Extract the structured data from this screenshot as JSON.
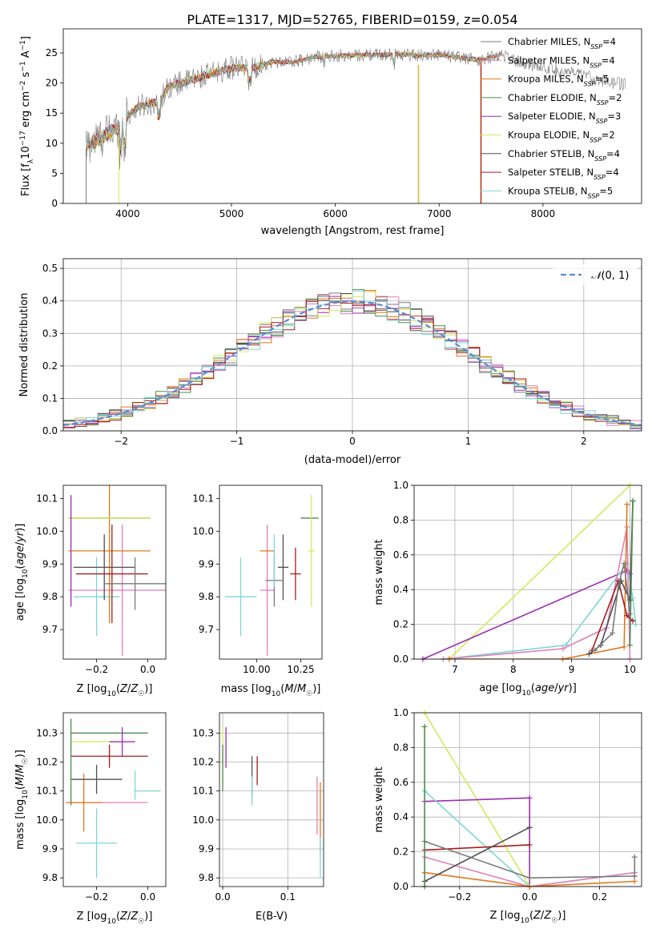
{
  "title": "PLATE=1317, MJD=52765, FIBERID=0159, z=0.054",
  "colors": [
    "#7f7f7f",
    "#e377c2",
    "#ff7f0e",
    "#2ca02c",
    "#9467bd",
    "#dbdb8d",
    "#555555",
    "#d62728",
    "#17becf"
  ],
  "colors_exact": [
    "#7a7a7a",
    "#e07fb8",
    "#e0781c",
    "#4f8a4f",
    "#9b2fb0",
    "#d4e85c",
    "#505050",
    "#a61c1c",
    "#7fd6d6"
  ],
  "chart_data": [
    {
      "type": "line",
      "id": "spectrum",
      "xlabel": "wavelength [Angstrom, rest frame]",
      "ylabel": "Flux [fλ10⁻¹⁷ erg cm⁻² s⁻¹ A⁻¹]",
      "xlim": [
        3380,
        8950
      ],
      "ylim": [
        0,
        29
      ],
      "xticks": [
        4000,
        5000,
        6000,
        7000,
        8000
      ],
      "yticks": [
        0,
        5,
        10,
        15,
        20,
        25
      ],
      "grid": false,
      "legend": "top-right",
      "continuum": {
        "x": [
          3600,
          3700,
          3800,
          3900,
          4000,
          4100,
          4200,
          4300,
          4400,
          4600,
          4800,
          5000,
          5200,
          5400,
          5600,
          5800,
          6000,
          6200,
          6400,
          6600,
          6800,
          7000,
          7200,
          7400,
          7600,
          7800,
          8000,
          8200,
          8400,
          8600,
          8800
        ],
        "y": [
          9.5,
          10.5,
          11.5,
          12.5,
          14.5,
          16,
          16.5,
          17,
          19.5,
          20.5,
          21.5,
          22.5,
          22.5,
          23.5,
          23.5,
          24.3,
          24.5,
          24.6,
          24.7,
          24.8,
          24.6,
          24.7,
          24.2,
          23.8,
          24.8,
          23.3,
          22.8,
          21.8,
          21.2,
          20.3,
          19.7
        ]
      },
      "series_names": [
        "Chabrier MILES, N_SSP=4",
        "Salpeter MILES, N_SSP=4",
        "Kroupa MILES, N_SSP=5",
        "Chabrier ELODIE, N_SSP=2",
        "Salpeter ELODIE, N_SSP=3",
        "Kroupa ELODIE, N_SSP=2",
        "Chabrier STELIB, N_SSP=4",
        "Salpeter STELIB, N_SSP=4",
        "Kroupa STELIB, N_SSP=5"
      ],
      "legend_entries": [
        {
          "main": "Chabrier MILES, N",
          "sub": "SSP",
          "tail": "=4"
        },
        {
          "main": "Salpeter MILES, N",
          "sub": "SSP",
          "tail": "=4"
        },
        {
          "main": "Kroupa MILES, N",
          "sub": "SSP",
          "tail": "=5"
        },
        {
          "main": "Chabrier ELODIE, N",
          "sub": "SSP",
          "tail": "=2"
        },
        {
          "main": "Salpeter ELODIE, N",
          "sub": "SSP",
          "tail": "=3"
        },
        {
          "main": "Kroupa ELODIE, N",
          "sub": "SSP",
          "tail": "=2"
        },
        {
          "main": "Chabrier STELIB, N",
          "sub": "SSP",
          "tail": "=4"
        },
        {
          "main": "Salpeter STELIB, N",
          "sub": "SSP",
          "tail": "=4"
        },
        {
          "main": "Kroupa STELIB, N",
          "sub": "SSP",
          "tail": "=5"
        }
      ],
      "drops": [
        {
          "x": 3600,
          "y0": 0,
          "y1": 9,
          "series": 0
        },
        {
          "x": 3915,
          "y0": 0,
          "y1": 11,
          "series": 5
        },
        {
          "x": 6800,
          "y0": 0,
          "y1": 23,
          "series": 2
        },
        {
          "x": 6805,
          "y0": 0,
          "y1": 23,
          "series": 5
        },
        {
          "x": 7400,
          "y0": 0,
          "y1": 23.5,
          "series": 2
        },
        {
          "x": 7405,
          "y0": 0,
          "y1": 23.5,
          "series": 7
        }
      ]
    },
    {
      "type": "histogram",
      "id": "residuals",
      "xlabel": "(data-model)/error",
      "ylabel": "Normed distribution",
      "xlim": [
        -2.5,
        2.5
      ],
      "ylim": [
        0,
        0.53
      ],
      "xticks": [
        -2,
        -1,
        0,
        1,
        2
      ],
      "yticks": [
        0.0,
        0.1,
        0.2,
        0.3,
        0.4,
        0.5
      ],
      "grid": true,
      "legend": "top-right",
      "normal_label": "N(0,1)",
      "normal_label_char": "𝒩",
      "normal_label_args": "(0, 1)",
      "normal_color": "#5b8ad6",
      "bin_width": 0.1,
      "bin_start": -2.5,
      "note": "histogram bar heights approximated from a standard normal with visible scatter",
      "scatter_amplitude": 0.035
    },
    {
      "type": "errorbar",
      "id": "age_vs_Z",
      "xlabel": "Z [log10(Z/Z☉)]",
      "ylabel": "age  [log10(age/yr)]",
      "xlim": [
        -0.33,
        0.07
      ],
      "ylim": [
        9.61,
        10.14
      ],
      "xticks": [
        -0.2,
        0.0
      ],
      "xticklabels": [
        "−0.2",
        "0.0"
      ],
      "yticks": [
        9.7,
        9.8,
        9.9,
        10.0,
        10.1
      ],
      "grid": false,
      "points": [
        {
          "x": -0.2,
          "y": 9.8,
          "xe": 0.09,
          "ye": 0.12,
          "series": 8
        },
        {
          "x": -0.1,
          "y": 9.82,
          "xe": 0.21,
          "ye": 0.2,
          "series": 1
        },
        {
          "x": -0.15,
          "y": 9.94,
          "xe": 0.16,
          "ye": 0.22,
          "series": 2
        },
        {
          "x": -0.15,
          "y": 10.04,
          "xe": 0.16,
          "ye": 0.0,
          "series": 3
        },
        {
          "x": -0.15,
          "y": 10.04,
          "xe": 0.16,
          "ye": 0.0,
          "series": 5
        },
        {
          "x": -0.17,
          "y": 9.89,
          "xe": 0.12,
          "ye": 0.1,
          "series": 6
        },
        {
          "x": -0.14,
          "y": 9.87,
          "xe": 0.14,
          "ye": 0.15,
          "series": 7
        },
        {
          "x": -0.05,
          "y": 9.84,
          "xe": 0.12,
          "ye": 0.08,
          "series": 0
        },
        {
          "x": -0.3,
          "y": 9.94,
          "xe": 0.0,
          "ye": 0.17,
          "series": 5
        },
        {
          "x": -0.3,
          "y": 9.94,
          "xe": 0.0,
          "ye": 0.17,
          "series": 4
        }
      ]
    },
    {
      "type": "errorbar",
      "id": "age_vs_mass",
      "xlabel": "mass [log10(M/M☉)]",
      "ylabel": "",
      "xlim": [
        9.79,
        10.37
      ],
      "ylim": [
        9.61,
        10.14
      ],
      "xticks": [
        10.0,
        10.25
      ],
      "xticklabels": [
        "10.00",
        "10.25"
      ],
      "yticks": [
        9.7,
        9.8,
        9.9,
        10.0,
        10.1
      ],
      "grid": false,
      "points": [
        {
          "x": 9.91,
          "y": 9.8,
          "xe": 0.09,
          "ye": 0.12,
          "series": 8
        },
        {
          "x": 10.06,
          "y": 9.82,
          "xe": 0.04,
          "ye": 0.2,
          "series": 1
        },
        {
          "x": 10.06,
          "y": 9.94,
          "xe": 0.04,
          "ye": 0.0,
          "series": 2
        },
        {
          "x": 10.3,
          "y": 10.04,
          "xe": 0.05,
          "ye": 0.0,
          "series": 3
        },
        {
          "x": 10.31,
          "y": 9.94,
          "xe": 0.02,
          "ye": 0.17,
          "series": 5
        },
        {
          "x": 10.15,
          "y": 9.89,
          "xe": 0.03,
          "ye": 0.1,
          "series": 6
        },
        {
          "x": 10.22,
          "y": 9.87,
          "xe": 0.03,
          "ye": 0.08,
          "series": 7
        },
        {
          "x": 10.1,
          "y": 9.85,
          "xe": 0.05,
          "ye": 0.08,
          "series": 0
        },
        {
          "x": 10.32,
          "y": 9.87,
          "xe": 0.0,
          "ye": 0.0,
          "series": 4
        },
        {
          "x": 10.1,
          "y": 9.91,
          "xe": 0.0,
          "ye": 0.08,
          "series": 8
        }
      ]
    },
    {
      "type": "line",
      "id": "massweight_vs_age",
      "xlabel": "age  [log10(age/yr)]",
      "ylabel": "mass weight",
      "xlim": [
        6.3,
        10.2
      ],
      "ylim": [
        0,
        1
      ],
      "xticks": [
        7,
        8,
        9,
        10
      ],
      "yticks": [
        0.0,
        0.2,
        0.4,
        0.6,
        0.8,
        1.0
      ],
      "grid": true,
      "series": [
        {
          "series": 5,
          "x": [
            6.9,
            10.0
          ],
          "y": [
            0.0,
            1.0
          ]
        },
        {
          "series": 4,
          "x": [
            6.45,
            9.95,
            10.0
          ],
          "y": [
            0.0,
            0.51,
            0.49
          ]
        },
        {
          "series": 8,
          "x": [
            6.8,
            8.9,
            9.95,
            10.05,
            10.1
          ],
          "y": [
            0.0,
            0.08,
            0.55,
            0.35,
            0.2
          ]
        },
        {
          "series": 1,
          "x": [
            6.8,
            8.85,
            9.6,
            9.95,
            10.0
          ],
          "y": [
            0.0,
            0.06,
            0.18,
            0.76,
            0.0
          ]
        },
        {
          "series": 2,
          "x": [
            6.9,
            8.85,
            9.9,
            9.95
          ],
          "y": [
            0.0,
            0.0,
            0.07,
            0.89
          ]
        },
        {
          "series": 7,
          "x": [
            9.35,
            9.8,
            9.95,
            10.05
          ],
          "y": [
            0.05,
            0.45,
            0.25,
            0.22
          ]
        },
        {
          "series": 6,
          "x": [
            9.3,
            9.5,
            9.85,
            10.0,
            10.05
          ],
          "y": [
            0.03,
            0.08,
            0.45,
            0.34,
            0.91
          ]
        },
        {
          "series": 3,
          "x": [
            10.0,
            10.05
          ],
          "y": [
            0.08,
            0.91
          ]
        },
        {
          "series": 0,
          "x": [
            9.4,
            9.7,
            9.8,
            9.9,
            10.0
          ],
          "y": [
            0.05,
            0.15,
            0.42,
            0.55,
            0.26
          ]
        }
      ]
    },
    {
      "type": "errorbar",
      "id": "mass_vs_Z",
      "xlabel": "Z [log10(Z/Z☉)]",
      "ylabel": "mass [log10(M/M☉)]",
      "xlim": [
        -0.33,
        0.07
      ],
      "ylim": [
        9.77,
        10.37
      ],
      "xticks": [
        -0.2,
        0.0
      ],
      "xticklabels": [
        "−0.2",
        "0.0"
      ],
      "yticks": [
        9.8,
        9.9,
        10.0,
        10.1,
        10.2,
        10.3
      ],
      "grid": false,
      "points": [
        {
          "x": -0.2,
          "y": 9.92,
          "xe": 0.08,
          "ye": 0.12,
          "series": 8
        },
        {
          "x": -0.15,
          "y": 10.06,
          "xe": 0.15,
          "ye": 0.0,
          "series": 1
        },
        {
          "x": -0.25,
          "y": 10.06,
          "xe": 0.07,
          "ye": 0.1,
          "series": 2
        },
        {
          "x": -0.15,
          "y": 10.3,
          "xe": 0.15,
          "ye": 0.0,
          "series": 3
        },
        {
          "x": -0.2,
          "y": 10.27,
          "xe": 0.1,
          "ye": 0.0,
          "series": 5
        },
        {
          "x": -0.1,
          "y": 10.27,
          "xe": 0.05,
          "ye": 0.05,
          "series": 4
        },
        {
          "x": -0.2,
          "y": 10.14,
          "xe": 0.1,
          "ye": 0.05,
          "series": 6
        },
        {
          "x": -0.15,
          "y": 10.22,
          "xe": 0.15,
          "ye": 0.04,
          "series": 7
        },
        {
          "x": 0.0,
          "y": 10.1,
          "xe": 0.05,
          "ye": 0.0,
          "series": 8
        },
        {
          "x": -0.3,
          "y": 10.2,
          "xe": 0.0,
          "ye": 0.15,
          "series": 3
        },
        {
          "x": -0.05,
          "y": 10.12,
          "xe": 0.0,
          "ye": 0.05,
          "series": 8
        }
      ]
    },
    {
      "type": "errorbar",
      "id": "mass_vs_EBV",
      "xlabel": "E(B-V)",
      "ylabel": "",
      "xlim": [
        -0.005,
        0.155
      ],
      "ylim": [
        9.77,
        10.37
      ],
      "xticks": [
        0.0,
        0.1
      ],
      "xticklabels": [
        "0.0",
        "0.1"
      ],
      "yticks": [
        9.8,
        9.9,
        10.0,
        10.1,
        10.2,
        10.3
      ],
      "grid": true,
      "points": [
        {
          "x": 0.0,
          "y": 10.25,
          "xe": 0.0,
          "ye": 0.07,
          "series": 5
        },
        {
          "x": 0.0,
          "y": 10.18,
          "xe": 0.0,
          "ye": 0.08,
          "series": 3
        },
        {
          "x": 0.005,
          "y": 10.25,
          "xe": 0.0,
          "ye": 0.07,
          "series": 4
        },
        {
          "x": 0.045,
          "y": 10.15,
          "xe": 0.0,
          "ye": 0.07,
          "series": 6
        },
        {
          "x": 0.045,
          "y": 10.1,
          "xe": 0.0,
          "ye": 0.05,
          "series": 8
        },
        {
          "x": 0.053,
          "y": 10.17,
          "xe": 0.0,
          "ye": 0.05,
          "series": 7
        },
        {
          "x": 0.145,
          "y": 10.05,
          "xe": 0.0,
          "ye": 0.1,
          "series": 1
        },
        {
          "x": 0.15,
          "y": 10.0,
          "xe": 0.0,
          "ye": 0.13,
          "series": 2
        },
        {
          "x": 0.15,
          "y": 9.87,
          "xe": 0.0,
          "ye": 0.07,
          "series": 8
        }
      ]
    },
    {
      "type": "line",
      "id": "massweight_vs_Z",
      "xlabel": "Z [log10(Z/Z☉)]",
      "ylabel": "mass weight",
      "xlim": [
        -0.33,
        0.32
      ],
      "ylim": [
        0,
        1
      ],
      "xticks": [
        -0.2,
        0.0,
        0.2
      ],
      "xticklabels": [
        "−0.2",
        "0.0",
        "0.2"
      ],
      "yticks": [
        0.0,
        0.2,
        0.4,
        0.6,
        0.8,
        1.0
      ],
      "grid": true,
      "series": [
        {
          "series": 5,
          "x": [
            -0.3,
            0.0
          ],
          "y": [
            1.0,
            0.0
          ]
        },
        {
          "series": 4,
          "x": [
            -0.3,
            0.0,
            0.0
          ],
          "y": [
            0.49,
            0.51,
            0.0
          ]
        },
        {
          "series": 8,
          "x": [
            -0.3,
            0.0,
            0.3
          ],
          "y": [
            0.55,
            0.0,
            0.08
          ]
        },
        {
          "series": 1,
          "x": [
            -0.3,
            0.0,
            0.3
          ],
          "y": [
            0.17,
            0.0,
            0.08
          ]
        },
        {
          "series": 2,
          "x": [
            -0.3,
            0.0,
            0.3
          ],
          "y": [
            0.08,
            0.0,
            0.03
          ]
        },
        {
          "series": 7,
          "x": [
            -0.3,
            0.0
          ],
          "y": [
            0.21,
            0.24
          ]
        },
        {
          "series": 6,
          "x": [
            -0.3,
            0.0
          ],
          "y": [
            0.03,
            0.34
          ]
        },
        {
          "series": 0,
          "x": [
            -0.3,
            0.0,
            0.3
          ],
          "y": [
            0.26,
            0.05,
            0.06
          ]
        },
        {
          "series": 3,
          "x": [
            -0.3,
            -0.3
          ],
          "y": [
            0.92,
            0.0
          ]
        },
        {
          "series": 0,
          "x": [
            0.3,
            0.3
          ],
          "y": [
            0.06,
            0.17
          ]
        }
      ]
    }
  ]
}
